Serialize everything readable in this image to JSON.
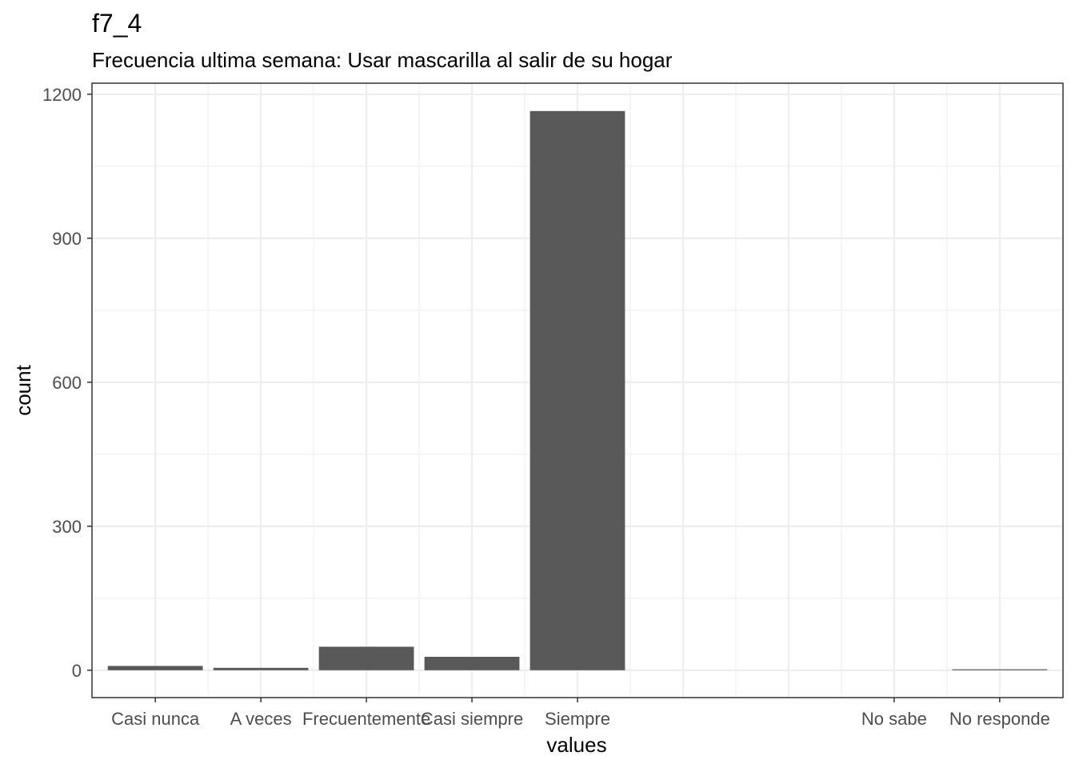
{
  "chart_data": {
    "type": "bar",
    "title": "f7_4",
    "subtitle": "Frecuencia ultima semana: Usar mascarilla al salir de su hogar",
    "xlabel": "values",
    "ylabel": "count",
    "categories": [
      "Casi nunca",
      "A veces",
      "Frecuentemente",
      "Casi siempre",
      "Siempre",
      "",
      "",
      "No sabe",
      "No responde"
    ],
    "values": [
      9,
      5,
      49,
      28,
      1165,
      0,
      0,
      0,
      2
    ],
    "ylim": [
      -57,
      1223
    ],
    "yticks": [
      0,
      300,
      600,
      900,
      1200
    ],
    "yticks_labels": [
      "0",
      "300",
      "600",
      "900",
      "1200"
    ],
    "grid": true,
    "bar_color": "#595959",
    "grid_color": "#ebebeb",
    "panel_border_color": "#333333"
  }
}
